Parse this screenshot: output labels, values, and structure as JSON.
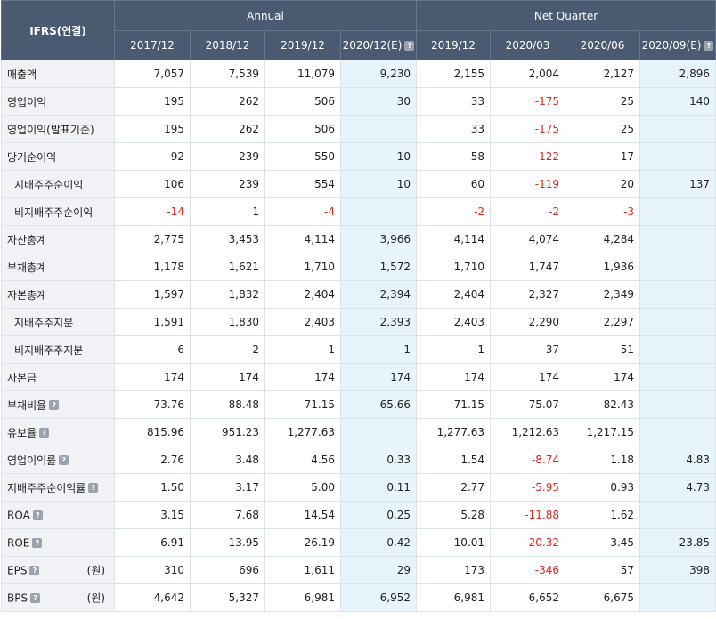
{
  "header": {
    "corner": "IFRS(연결)",
    "annual": "Annual",
    "quarter": "Net Quarter",
    "periods": [
      "2017/12",
      "2018/12",
      "2019/12",
      "2020/12(E)",
      "2019/12",
      "2020/03",
      "2020/06",
      "2020/09(E)"
    ]
  },
  "rows": [
    {
      "label": "매출액",
      "unit": "",
      "help": false,
      "sub": false,
      "values": [
        "7,057",
        "7,539",
        "11,079",
        "9,230",
        "2,155",
        "2,004",
        "2,127",
        "2,896"
      ]
    },
    {
      "label": "영업이익",
      "unit": "",
      "help": false,
      "sub": false,
      "values": [
        "195",
        "262",
        "506",
        "30",
        "33",
        "-175",
        "25",
        "140"
      ]
    },
    {
      "label": "영업이익(발표기준)",
      "unit": "",
      "help": false,
      "sub": false,
      "values": [
        "195",
        "262",
        "506",
        "",
        "33",
        "-175",
        "25",
        ""
      ]
    },
    {
      "label": "당기순이익",
      "unit": "",
      "help": false,
      "sub": false,
      "values": [
        "92",
        "239",
        "550",
        "10",
        "58",
        "-122",
        "17",
        ""
      ]
    },
    {
      "label": "지배주주순이익",
      "unit": "",
      "help": false,
      "sub": true,
      "values": [
        "106",
        "239",
        "554",
        "10",
        "60",
        "-119",
        "20",
        "137"
      ]
    },
    {
      "label": "비지배주주순이익",
      "unit": "",
      "help": false,
      "sub": true,
      "values": [
        "-14",
        "1",
        "-4",
        "",
        "-2",
        "-2",
        "-3",
        ""
      ]
    },
    {
      "label": "자산총계",
      "unit": "",
      "help": false,
      "sub": false,
      "values": [
        "2,775",
        "3,453",
        "4,114",
        "3,966",
        "4,114",
        "4,074",
        "4,284",
        ""
      ]
    },
    {
      "label": "부채총계",
      "unit": "",
      "help": false,
      "sub": false,
      "values": [
        "1,178",
        "1,621",
        "1,710",
        "1,572",
        "1,710",
        "1,747",
        "1,936",
        ""
      ]
    },
    {
      "label": "자본총계",
      "unit": "",
      "help": false,
      "sub": false,
      "values": [
        "1,597",
        "1,832",
        "2,404",
        "2,394",
        "2,404",
        "2,327",
        "2,349",
        ""
      ]
    },
    {
      "label": "지배주주지분",
      "unit": "",
      "help": false,
      "sub": true,
      "values": [
        "1,591",
        "1,830",
        "2,403",
        "2,393",
        "2,403",
        "2,290",
        "2,297",
        ""
      ]
    },
    {
      "label": "비지배주주지분",
      "unit": "",
      "help": false,
      "sub": true,
      "values": [
        "6",
        "2",
        "1",
        "1",
        "1",
        "37",
        "51",
        ""
      ]
    },
    {
      "label": "자본금",
      "unit": "",
      "help": false,
      "sub": false,
      "values": [
        "174",
        "174",
        "174",
        "174",
        "174",
        "174",
        "174",
        ""
      ]
    },
    {
      "label": "부채비율",
      "unit": "",
      "help": true,
      "sub": false,
      "values": [
        "73.76",
        "88.48",
        "71.15",
        "65.66",
        "71.15",
        "75.07",
        "82.43",
        ""
      ]
    },
    {
      "label": "유보율",
      "unit": "",
      "help": true,
      "sub": false,
      "values": [
        "815.96",
        "951.23",
        "1,277.63",
        "",
        "1,277.63",
        "1,212.63",
        "1,217.15",
        ""
      ]
    },
    {
      "label": "영업이익률",
      "unit": "",
      "help": true,
      "sub": false,
      "values": [
        "2.76",
        "3.48",
        "4.56",
        "0.33",
        "1.54",
        "-8.74",
        "1.18",
        "4.83"
      ]
    },
    {
      "label": "지배주주순이익률",
      "unit": "",
      "help": true,
      "sub": false,
      "values": [
        "1.50",
        "3.17",
        "5.00",
        "0.11",
        "2.77",
        "-5.95",
        "0.93",
        "4.73"
      ]
    },
    {
      "label": "ROA",
      "unit": "",
      "help": true,
      "sub": false,
      "values": [
        "3.15",
        "7.68",
        "14.54",
        "0.25",
        "5.28",
        "-11.88",
        "1.62",
        ""
      ]
    },
    {
      "label": "ROE",
      "unit": "",
      "help": true,
      "sub": false,
      "values": [
        "6.91",
        "13.95",
        "26.19",
        "0.42",
        "10.01",
        "-20.32",
        "3.45",
        "23.85"
      ]
    },
    {
      "label": "EPS",
      "unit": "(원)",
      "help": true,
      "sub": false,
      "values": [
        "310",
        "696",
        "1,611",
        "29",
        "173",
        "-346",
        "57",
        "398"
      ]
    },
    {
      "label": "BPS",
      "unit": "(원)",
      "help": true,
      "sub": false,
      "values": [
        "4,642",
        "5,327",
        "6,981",
        "6,952",
        "6,981",
        "6,652",
        "6,675",
        ""
      ]
    }
  ],
  "icons": {
    "help": "question-mark-icon",
    "help_glyph": "?"
  },
  "colors": {
    "header_bg": "#4a5a70",
    "label_bg": "#f0f2f6",
    "estimate_bg": "#e8f4fb",
    "negative": "#e0251b"
  }
}
